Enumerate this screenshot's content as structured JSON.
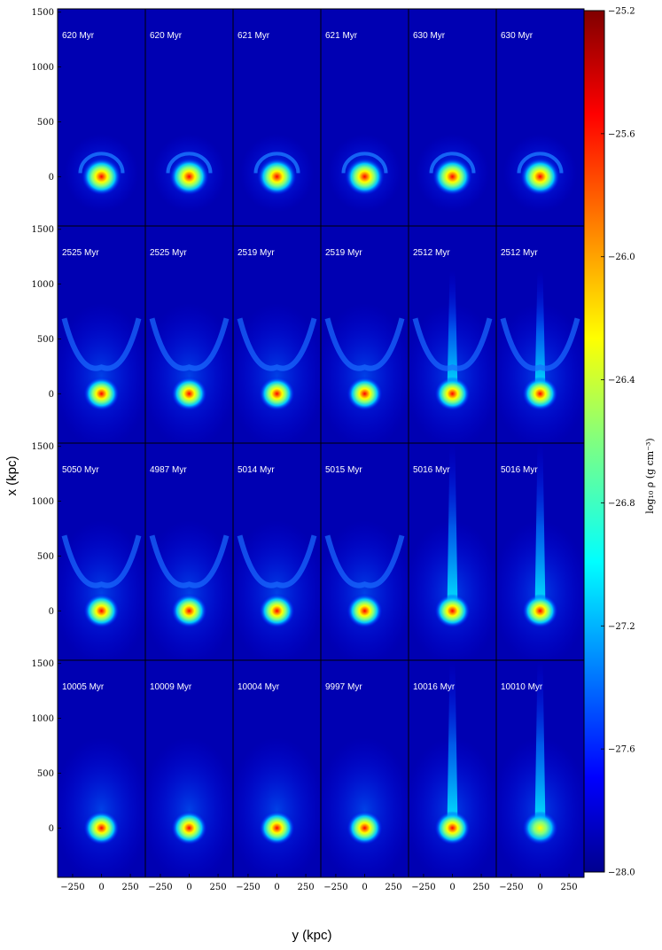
{
  "chart_data": {
    "type": "heatmap",
    "title": "",
    "xlabel": "y (kpc)",
    "ylabel": "x (kpc)",
    "xlim": [
      -380,
      380
    ],
    "ylim": [
      -450,
      1530
    ],
    "xticks": [
      "−250",
      "0",
      "250"
    ],
    "xtick_values": [
      -250,
      0,
      250
    ],
    "yticks": [
      "1500",
      "1000",
      "500",
      "0"
    ],
    "ytick_values": [
      1500,
      1000,
      500,
      0
    ],
    "colorbar": {
      "label": "log₁₀ ρ (g cm⁻³)",
      "range": [
        -28.0,
        -25.2
      ],
      "ticks": [
        "−25.2",
        "−25.6",
        "−26.0",
        "−26.4",
        "−26.8",
        "−27.2",
        "−27.6",
        "−28.0"
      ],
      "tick_values": [
        -25.2,
        -25.6,
        -26.0,
        -26.4,
        -26.8,
        -27.2,
        -27.6,
        -28.0
      ],
      "colormap": "jet"
    },
    "rows": 4,
    "cols": 6,
    "panels": [
      [
        "620 Myr",
        "620 Myr",
        "621 Myr",
        "621 Myr",
        "630 Myr",
        "630 Myr"
      ],
      [
        "2525 Myr",
        "2525 Myr",
        "2519 Myr",
        "2519 Myr",
        "2512 Myr",
        "2512 Myr"
      ],
      [
        "5050 Myr",
        "4987 Myr",
        "5014 Myr",
        "5015 Myr",
        "5016 Myr",
        "5016 Myr"
      ],
      [
        "10005 Myr",
        "10009 Myr",
        "10004 Myr",
        "9997 Myr",
        "10016 Myr",
        "10010 Myr"
      ]
    ]
  },
  "colors": {
    "background": "#0000b2",
    "jet": [
      "#00008f",
      "#0000ff",
      "#0080ff",
      "#00ffff",
      "#80ff80",
      "#ffff00",
      "#ff8000",
      "#ff0000",
      "#800000"
    ]
  }
}
